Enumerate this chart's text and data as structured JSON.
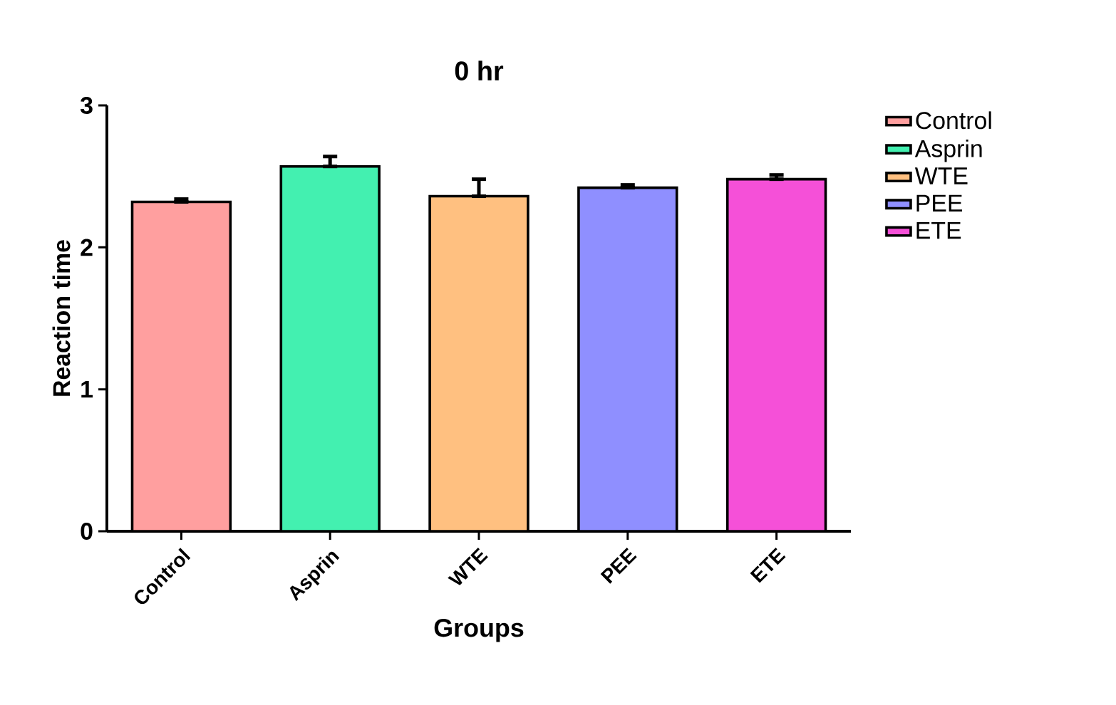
{
  "chart_data": {
    "type": "bar",
    "title": "0 hr",
    "xlabel": "Groups",
    "ylabel": "Reaction time",
    "categories": [
      "Control",
      "Asprin",
      "WTE",
      "PEE",
      "ETE"
    ],
    "series": [
      {
        "name": "Control",
        "color": "#ff9f9f",
        "values": [
          2.32,
          null,
          null,
          null,
          null
        ],
        "errors": [
          [
            2.32,
            2.34
          ],
          null,
          null,
          null,
          null
        ]
      },
      {
        "name": "Asprin",
        "color": "#43f0b0",
        "values": [
          null,
          2.57,
          null,
          null,
          null
        ],
        "errors": [
          null,
          [
            2.57,
            2.64
          ],
          null,
          null,
          null
        ]
      },
      {
        "name": "WTE",
        "color": "#ffc080",
        "values": [
          null,
          null,
          2.36,
          null,
          null
        ],
        "errors": [
          null,
          null,
          [
            2.36,
            2.48
          ],
          null,
          null
        ]
      },
      {
        "name": "PEE",
        "color": "#8f8fff",
        "values": [
          null,
          null,
          null,
          2.42,
          null
        ],
        "errors": [
          null,
          null,
          null,
          [
            2.42,
            2.44
          ],
          null
        ]
      },
      {
        "name": "ETE",
        "color": "#f550d8",
        "values": [
          null,
          null,
          null,
          null,
          2.48
        ],
        "errors": [
          null,
          null,
          null,
          null,
          [
            2.48,
            2.51
          ]
        ]
      }
    ],
    "ylim": [
      0,
      3
    ],
    "yticks": [
      0,
      1,
      2,
      3
    ],
    "legend": "right"
  }
}
